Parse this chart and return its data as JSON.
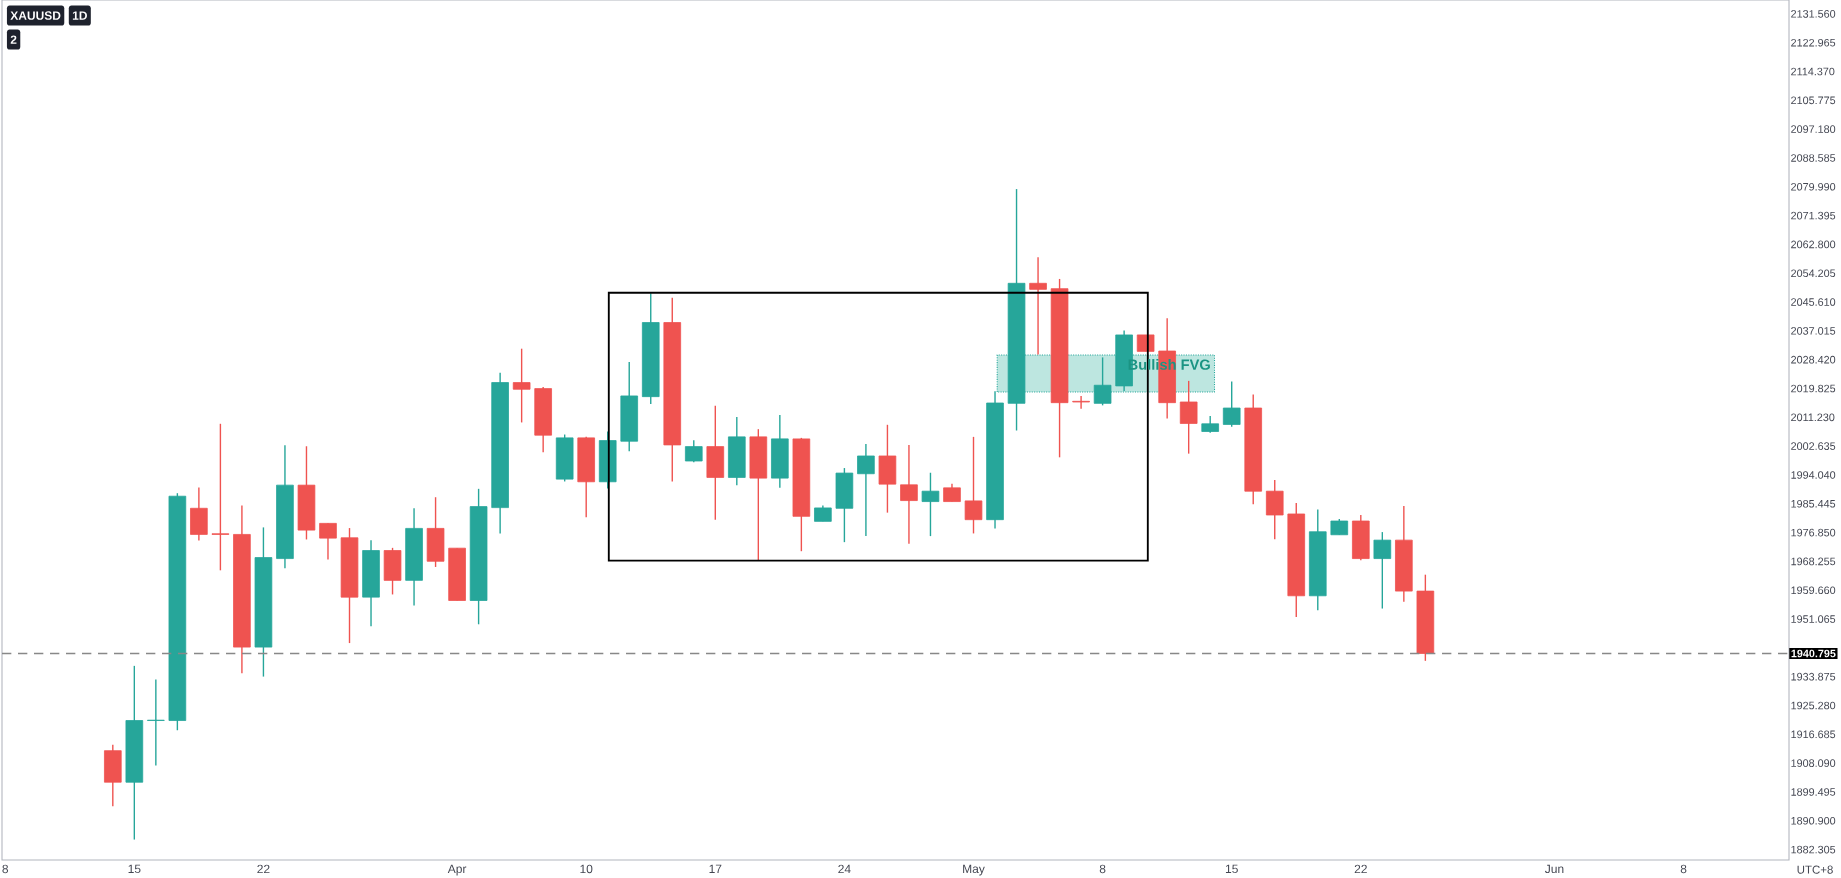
{
  "chart_data": {
    "type": "candlestick",
    "title": "XAUUSD",
    "subtitle": "1D",
    "annotations": [
      "2",
      "UTC+8",
      {
        "text": "Bullish FVG",
        "y": 2027.0
      }
    ],
    "categories": [
      "8",
      null,
      null,
      null,
      null,
      null,
      "15",
      null,
      null,
      null,
      null,
      null,
      "22",
      null,
      null,
      null,
      null,
      null,
      null,
      null,
      null,
      "Apr",
      null,
      null,
      null,
      null,
      null,
      "10",
      null,
      null,
      null,
      null,
      null,
      "17",
      null,
      null,
      null,
      null,
      null,
      "24",
      null,
      null,
      null,
      null,
      null,
      "May",
      null,
      null,
      null,
      null,
      null,
      "8",
      null,
      null,
      null,
      null,
      null,
      "15",
      null,
      null,
      null,
      null,
      null,
      "22",
      null,
      null,
      null,
      null,
      null,
      null,
      null,
      null,
      "Jun",
      null,
      null,
      null,
      null,
      null,
      "8",
      null,
      null,
      null,
      null
    ],
    "ohlc": [
      null,
      null,
      null,
      null,
      null,
      [
        1911.8,
        1913.6,
        1895.2,
        1902.4
      ],
      [
        1902.4,
        1937.1,
        1885.3,
        1920.8
      ],
      [
        1920.8,
        1933.0,
        1907.4,
        1920.9
      ],
      [
        1920.8,
        1988.6,
        1917.9,
        1987.7
      ],
      [
        1984.1,
        1990.3,
        1974.5,
        1976.3
      ],
      [
        1976.5,
        2009.3,
        1965.6,
        1976.3
      ],
      [
        1976.3,
        1984.9,
        1934.9,
        1942.7
      ],
      [
        1942.7,
        1978.4,
        1933.9,
        1969.4
      ],
      [
        1969.1,
        2002.9,
        1966.2,
        1991.0
      ],
      [
        1991.0,
        2002.6,
        1974.8,
        1977.6
      ],
      [
        1979.6,
        1979.6,
        1968.8,
        1975.2
      ],
      [
        1975.3,
        1978.2,
        1943.9,
        1957.6
      ],
      [
        1957.6,
        1974.6,
        1948.9,
        1971.5
      ],
      [
        1971.5,
        1972.3,
        1958.4,
        1962.6
      ],
      [
        1962.6,
        1984.1,
        1955.1,
        1978.1
      ],
      [
        1978.1,
        1987.4,
        1966.6,
        1968.3
      ],
      [
        1972.2,
        1972.2,
        1956.6,
        1956.6
      ],
      [
        1956.6,
        1989.9,
        1949.5,
        1984.6
      ],
      [
        1984.3,
        2024.5,
        1976.6,
        2021.6
      ],
      [
        2021.6,
        2031.7,
        2009.7,
        2019.6
      ],
      [
        2019.8,
        2020.3,
        2000.8,
        2005.9
      ],
      [
        1992.8,
        2006.1,
        1992.1,
        2005.1
      ],
      [
        2005.1,
        2005.4,
        1981.4,
        1992.0
      ],
      [
        1992.0,
        2007.0,
        1990.0,
        2004.3
      ],
      [
        2004.1,
        2027.7,
        2001.1,
        2017.6
      ],
      [
        2017.4,
        2048.2,
        2015.2,
        2039.5
      ],
      [
        2039.5,
        2046.9,
        1992.1,
        2003.0
      ],
      [
        1998.2,
        2004.4,
        1997.8,
        2002.5
      ],
      [
        2002.5,
        2014.7,
        1980.7,
        1993.3
      ],
      [
        1993.3,
        2011.3,
        1991.0,
        2005.4
      ],
      [
        2005.4,
        2007.7,
        1968.6,
        1993.1
      ],
      [
        1993.1,
        2011.9,
        1990.2,
        2004.8
      ],
      [
        2004.8,
        2005.1,
        1971.3,
        1981.7
      ],
      [
        1980.2,
        1984.9,
        1980.2,
        1984.2
      ],
      [
        1984.1,
        1996.1,
        1974.0,
        1994.6
      ],
      [
        1994.4,
        2003.3,
        1975.8,
        1999.7
      ],
      [
        1999.7,
        2009.0,
        1982.8,
        1991.3
      ],
      [
        1991.1,
        2003.0,
        1973.5,
        1986.4
      ],
      [
        1986.1,
        1994.7,
        1975.8,
        1989.2
      ],
      [
        1990.2,
        1991.4,
        1986.1,
        1986.1
      ],
      [
        1986.3,
        2005.4,
        1976.6,
        1980.7
      ],
      [
        1980.7,
        2019.0,
        1978.1,
        2015.5
      ],
      [
        2015.4,
        2079.3,
        2007.3,
        2051.2
      ],
      [
        2051.2,
        2059.0,
        2030.0,
        2049.4
      ],
      [
        2049.6,
        2052.5,
        1999.3,
        2015.6
      ],
      [
        2016.0,
        2017.6,
        2013.8,
        2015.8
      ],
      [
        2015.4,
        2029.1,
        2014.8,
        2020.8
      ],
      [
        2020.6,
        2037.1,
        2019.1,
        2035.8
      ],
      [
        2035.8,
        2035.8,
        2030.9,
        2030.9
      ],
      [
        2031.0,
        2040.8,
        2010.9,
        2015.6
      ],
      [
        2015.8,
        2022.1,
        2000.4,
        2009.4
      ],
      [
        2007.0,
        2011.6,
        2006.6,
        2009.3
      ],
      [
        2009.1,
        2021.9,
        2008.4,
        2014.0
      ],
      [
        2014.0,
        2018.0,
        1985.3,
        1989.2
      ],
      [
        1989.2,
        1992.5,
        1974.9,
        1982.1
      ],
      [
        1982.4,
        1985.7,
        1951.7,
        1958.0
      ],
      [
        1958.0,
        1983.7,
        1953.7,
        1977.1
      ],
      [
        1976.2,
        1980.9,
        1976.2,
        1980.3
      ],
      [
        1980.3,
        1982.1,
        1968.6,
        1969.1
      ],
      [
        1969.1,
        1977.0,
        1954.2,
        1974.6
      ],
      [
        1974.6,
        1984.8,
        1956.2,
        1959.4
      ],
      [
        1959.4,
        1964.3,
        1938.6,
        1940.795
      ],
      null,
      null,
      null,
      null,
      null,
      null,
      null,
      null,
      null,
      null,
      null,
      null,
      null,
      null,
      null,
      null
    ],
    "colors": [
      null,
      null,
      null,
      null,
      null,
      "#ef5350",
      "#26a69a",
      "#26a69a",
      "#26a69a",
      "#ef5350",
      "#ef5350",
      "#ef5350",
      "#26a69a",
      "#26a69a",
      "#ef5350",
      "#ef5350",
      "#ef5350",
      "#26a69a",
      "#ef5350",
      "#26a69a",
      "#ef5350",
      "#ef5350",
      "#26a69a",
      "#26a69a",
      "#ef5350",
      "#ef5350",
      "#26a69a",
      "#ef5350",
      "#26a69a",
      "#26a69a",
      "#26a69a",
      "#ef5350",
      "#26a69a",
      "#ef5350",
      "#26a69a",
      "#ef5350",
      "#26a69a",
      "#ef5350",
      "#26a69a",
      "#26a69a",
      "#26a69a",
      "#ef5350",
      "#ef5350",
      "#26a69a",
      "#ef5350",
      "#ef5350",
      "#26a69a",
      "#26a69a",
      "#ef5350",
      "#ef5350",
      "#ef5350",
      "#26a69a",
      "#26a69a",
      "#ef5350",
      "#ef5350",
      "#ef5350",
      "#26a69a",
      "#26a69a",
      "#ef5350",
      "#ef5350",
      "#ef5350",
      "#26a69a",
      "#26a69a",
      "#ef5350",
      "#26a69a",
      "#ef5350",
      "#ef5350",
      null,
      null,
      null,
      null,
      null,
      null,
      null,
      null,
      null,
      null,
      null,
      null,
      null,
      null,
      null,
      null
    ],
    "ylim": [
      1879.2,
      2135.7
    ],
    "yticks": [
      {
        "value": 1882.305,
        "label": "1882.305"
      },
      {
        "value": 1890.9,
        "label": "1890.900"
      },
      {
        "value": 1899.495,
        "label": "1899.495"
      },
      {
        "value": 1908.09,
        "label": "1908.090"
      },
      {
        "value": 1916.685,
        "label": "1916.685"
      },
      {
        "value": 1925.28,
        "label": "1925.280"
      },
      {
        "value": 1933.875,
        "label": "1933.875"
      },
      {
        "value": 1951.065,
        "label": "1951.065"
      },
      {
        "value": 1959.66,
        "label": "1959.660"
      },
      {
        "value": 1968.255,
        "label": "1968.255"
      },
      {
        "value": 1976.85,
        "label": "1976.850"
      },
      {
        "value": 1985.445,
        "label": "1985.445"
      },
      {
        "value": 1994.04,
        "label": "1994.040"
      },
      {
        "value": 2002.635,
        "label": "2002.635"
      },
      {
        "value": 2011.23,
        "label": "2011.230"
      },
      {
        "value": 2019.825,
        "label": "2019.825"
      },
      {
        "value": 2028.42,
        "label": "2028.420"
      },
      {
        "value": 2037.015,
        "label": "2037.015"
      },
      {
        "value": 2045.61,
        "label": "2045.610"
      },
      {
        "value": 2054.205,
        "label": "2054.205"
      },
      {
        "value": 2062.8,
        "label": "2062.800"
      },
      {
        "value": 2071.395,
        "label": "2071.395"
      },
      {
        "value": 2079.99,
        "label": "2079.990"
      },
      {
        "value": 2088.585,
        "label": "2088.585"
      },
      {
        "value": 2097.18,
        "label": "2097.180"
      },
      {
        "value": 2105.775,
        "label": "2105.775"
      },
      {
        "value": 2114.37,
        "label": "2114.370"
      },
      {
        "value": 2122.965,
        "label": "2122.965"
      },
      {
        "value": 2131.56,
        "label": "2131.560"
      }
    ],
    "ref_lines": [
      {
        "axis": "y",
        "value": 1940.795,
        "label": "1940.795",
        "color": "#888888",
        "line_style": "dashed"
      }
    ],
    "grid": false
  }
}
